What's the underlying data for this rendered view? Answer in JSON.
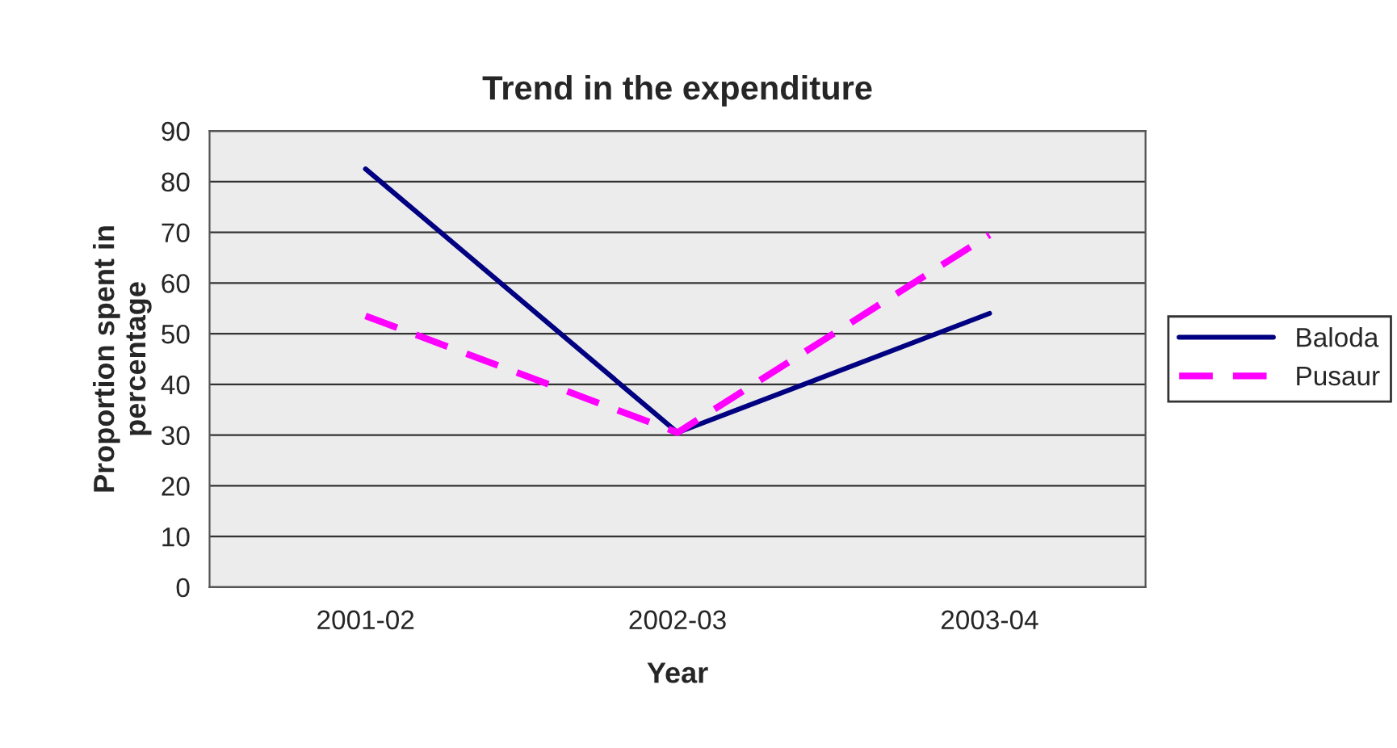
{
  "chart_data": {
    "type": "line",
    "title": "Trend in the expenditure",
    "xlabel": "Year",
    "ylabel": "Proportion spent in\npercentage",
    "categories": [
      "2001-02",
      "2002-03",
      "2003-04"
    ],
    "series": [
      {
        "name": "Baloda",
        "color": "#000080",
        "values": [
          82.5,
          30.5,
          54
        ],
        "line_style": "solid"
      },
      {
        "name": "Pusaur",
        "color": "#ff00ff",
        "values": [
          53.5,
          30.5,
          69.5
        ],
        "line_style": "dashed"
      }
    ],
    "ylim": [
      0,
      90
    ],
    "yticks": [
      0,
      10,
      20,
      30,
      40,
      50,
      60,
      70,
      80,
      90
    ],
    "grid": "y",
    "legend": "right",
    "marker": "none"
  }
}
